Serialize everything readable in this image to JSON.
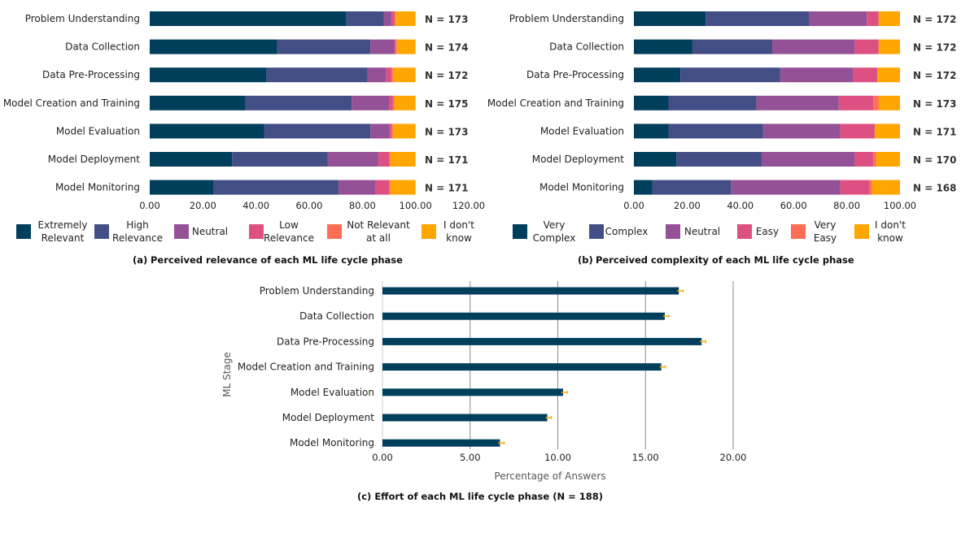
{
  "chart_data": [
    {
      "id": "a",
      "type": "bar",
      "orientation": "horizontal",
      "stacked": true,
      "caption_prefix": "(a)",
      "caption": "Perceived relevance of each ML life cycle phase",
      "categories": [
        "Problem Understanding",
        "Data Collection",
        "Data Pre-Processing",
        "Model Creation and Training",
        "Model Evaluation",
        "Model Deployment",
        "Model Monitoring"
      ],
      "n_labels": [
        "N = 173",
        "N = 174",
        "N = 172",
        "N = 175",
        "N = 173",
        "N = 171",
        "N = 171"
      ],
      "series": [
        {
          "name": "Extremely Relevant",
          "legend_lines": [
            "Extremely",
            "Relevant"
          ],
          "color": "#003f5c",
          "values": [
            74,
            48,
            44,
            36,
            43,
            31,
            24
          ]
        },
        {
          "name": "High Relevance",
          "legend_lines": [
            "High",
            "Relevance"
          ],
          "color": "#444e86",
          "values": [
            14,
            35,
            38,
            40,
            40,
            36,
            47
          ]
        },
        {
          "name": "Neutral",
          "legend_lines": [
            "Neutral"
          ],
          "color": "#955196",
          "values": [
            3,
            9,
            7,
            14,
            7,
            19,
            14
          ]
        },
        {
          "name": "Low Relevance",
          "legend_lines": [
            "Low",
            "Relevance"
          ],
          "color": "#dd5182",
          "values": [
            1,
            0.5,
            2,
            1.5,
            1,
            4,
            5
          ]
        },
        {
          "name": "Not Relevant at all",
          "legend_lines": [
            "Not Relevant",
            "at all"
          ],
          "color": "#ff6e54",
          "values": [
            0.5,
            0.5,
            0.5,
            0.5,
            0.5,
            0.5,
            0.5
          ]
        },
        {
          "name": "I don't know",
          "legend_lines": [
            "I don't",
            "know"
          ],
          "color": "#ffa600",
          "values": [
            7.5,
            7,
            8.5,
            8,
            8.5,
            9.5,
            9.5
          ]
        }
      ],
      "xlim": [
        0,
        120
      ],
      "xticks": [
        0,
        20,
        40,
        60,
        80,
        100,
        120
      ],
      "xtick_labels": [
        "0.00",
        "20.00",
        "40.00",
        "60.00",
        "80.00",
        "100.00",
        "120.00"
      ],
      "grid": false
    },
    {
      "id": "b",
      "type": "bar",
      "orientation": "horizontal",
      "stacked": true,
      "caption_prefix": "(b)",
      "caption": "Perceived complexity of each ML life cycle phase",
      "categories": [
        "Problem Understanding",
        "Data Collection",
        "Data Pre-Processing",
        "Model Creation and Training",
        "Model Evaluation",
        "Model Deployment",
        "Model Monitoring"
      ],
      "n_labels": [
        "N = 172",
        "N = 172",
        "N = 172",
        "N = 173",
        "N = 171",
        "N = 170",
        "N = 168"
      ],
      "series": [
        {
          "name": "Very Complex",
          "legend_lines": [
            "Very",
            "Complex"
          ],
          "color": "#003f5c",
          "values": [
            27,
            22,
            17.5,
            13,
            13,
            16,
            7
          ]
        },
        {
          "name": "Complex",
          "legend_lines": [
            "Complex"
          ],
          "color": "#444e86",
          "values": [
            39,
            30,
            37.5,
            33,
            35.5,
            32,
            29.5
          ]
        },
        {
          "name": "Neutral",
          "legend_lines": [
            "Neutral"
          ],
          "color": "#955196",
          "values": [
            21.5,
            31,
            27.5,
            31,
            29,
            35,
            41
          ]
        },
        {
          "name": "Easy",
          "legend_lines": [
            "Easy"
          ],
          "color": "#dd5182",
          "values": [
            4.5,
            9,
            9,
            13,
            13,
            7,
            11
          ]
        },
        {
          "name": "Very Easy",
          "legend_lines": [
            "Very",
            "Easy"
          ],
          "color": "#ff6e54",
          "values": [
            0,
            0,
            0,
            2,
            0,
            1,
            1
          ]
        },
        {
          "name": "I don't know",
          "legend_lines": [
            "I don't",
            "know"
          ],
          "color": "#ffa600",
          "values": [
            8,
            8,
            8.5,
            8,
            9.5,
            9,
            10.5
          ]
        }
      ],
      "xlim": [
        0,
        100
      ],
      "xticks": [
        0,
        20,
        40,
        60,
        80,
        100
      ],
      "xtick_labels": [
        "0.00",
        "20.00",
        "40.00",
        "60.00",
        "80.00",
        "100.00"
      ],
      "grid": false
    },
    {
      "id": "c",
      "type": "bar",
      "orientation": "horizontal",
      "stacked": false,
      "caption": "(c) Effort of each ML life cycle phase (N = 188)",
      "categories": [
        "Problem Understanding",
        "Data Collection",
        "Data Pre-Processing",
        "Model Creation and Training",
        "Model Evaluation",
        "Model Deployment",
        "Model Monitoring"
      ],
      "values": [
        16.9,
        16.1,
        18.2,
        15.9,
        10.3,
        9.4,
        6.7
      ],
      "error": [
        0.1,
        0.1,
        0.1,
        0.1,
        0.1,
        0.1,
        0.1
      ],
      "bar_color": "#003f5c",
      "error_color": "#ffa600",
      "xlabel": "Percentage of Answers",
      "ylabel": "ML Stage",
      "xlim": [
        0,
        20
      ],
      "xticks": [
        0,
        5,
        10,
        15,
        20
      ],
      "xtick_labels": [
        "0.00",
        "5.00",
        "10.00",
        "15.00",
        "20.00"
      ],
      "grid": true
    }
  ]
}
